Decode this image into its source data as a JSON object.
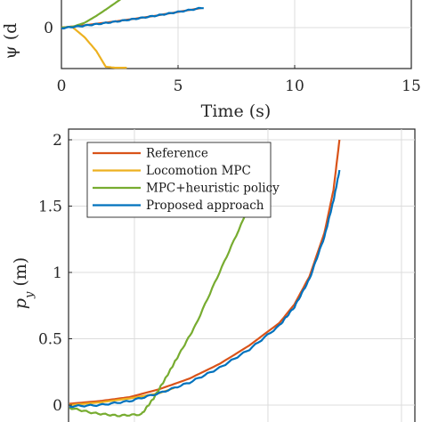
{
  "chart_data": [
    {
      "type": "line",
      "title": "",
      "xlabel": "Time (s)",
      "ylabel": "ψ (d",
      "xlim": [
        0,
        15
      ],
      "x_ticks": [
        "0",
        "5",
        "10",
        "15"
      ],
      "y_ticks": [
        "0"
      ],
      "grid": true,
      "series": [
        {
          "color": "#D95319",
          "x": [
            0,
            1,
            2,
            3,
            4,
            5,
            6
          ],
          "y": [
            0,
            0.12,
            0.27,
            0.43,
            0.6,
            0.8,
            1.0
          ]
        },
        {
          "color": "#EDB120",
          "x": [
            0.5,
            1.0,
            1.5,
            1.9,
            2.3,
            2.8
          ],
          "y": [
            0,
            -0.5,
            -1.2,
            -2.0,
            -2.05,
            -2.05
          ]
        },
        {
          "color": "#77AC30",
          "x": [
            0,
            0.5,
            1.0,
            1.5,
            2.0,
            2.6
          ],
          "y": [
            0,
            0.05,
            0.25,
            0.6,
            1.0,
            1.5
          ]
        },
        {
          "color": "#0072BD",
          "x": [
            0,
            1,
            2,
            3,
            4,
            5,
            6.1
          ],
          "y": [
            -0.03,
            0.1,
            0.25,
            0.42,
            0.6,
            0.8,
            1.02
          ]
        }
      ]
    },
    {
      "type": "line",
      "title": "",
      "xlabel": "",
      "ylabel": "p_y (m)",
      "ylim": [
        0,
        2
      ],
      "y_ticks": [
        "0",
        "0.5",
        "1",
        "1.5",
        "2"
      ],
      "grid": true,
      "legend_position": "top-left",
      "series": [
        {
          "name": "Reference",
          "color": "#D95319",
          "x": [
            0,
            0.1,
            0.2,
            0.3,
            0.4,
            0.5,
            0.6,
            0.7,
            0.75,
            0.8,
            0.85,
            0.88,
            0.9
          ],
          "y": [
            0.01,
            0.03,
            0.06,
            0.12,
            0.2,
            0.31,
            0.45,
            0.62,
            0.76,
            0.97,
            1.3,
            1.62,
            2.0
          ]
        },
        {
          "name": "Locomotion MPC",
          "color": "#EDB120",
          "x": [
            0,
            0.1,
            0.2,
            0.3,
            0.35
          ],
          "y": [
            0.0,
            0.02,
            0.05,
            0.09,
            0.13
          ]
        },
        {
          "name": "MPC+heuristic policy",
          "color": "#77AC30",
          "x": [
            0,
            0.08,
            0.16,
            0.24,
            0.28,
            0.32,
            0.36,
            0.42,
            0.5,
            0.58,
            0.66
          ],
          "y": [
            -0.02,
            -0.06,
            -0.08,
            -0.07,
            0.05,
            0.2,
            0.36,
            0.6,
            1.0,
            1.4,
            1.88
          ]
        },
        {
          "name": "Proposed approach",
          "color": "#0072BD",
          "x": [
            0,
            0.1,
            0.2,
            0.3,
            0.4,
            0.5,
            0.6,
            0.7,
            0.75,
            0.8,
            0.85,
            0.88,
            0.9
          ],
          "y": [
            -0.01,
            0.0,
            0.03,
            0.09,
            0.17,
            0.28,
            0.42,
            0.6,
            0.74,
            0.95,
            1.27,
            1.54,
            1.77
          ]
        }
      ]
    }
  ]
}
